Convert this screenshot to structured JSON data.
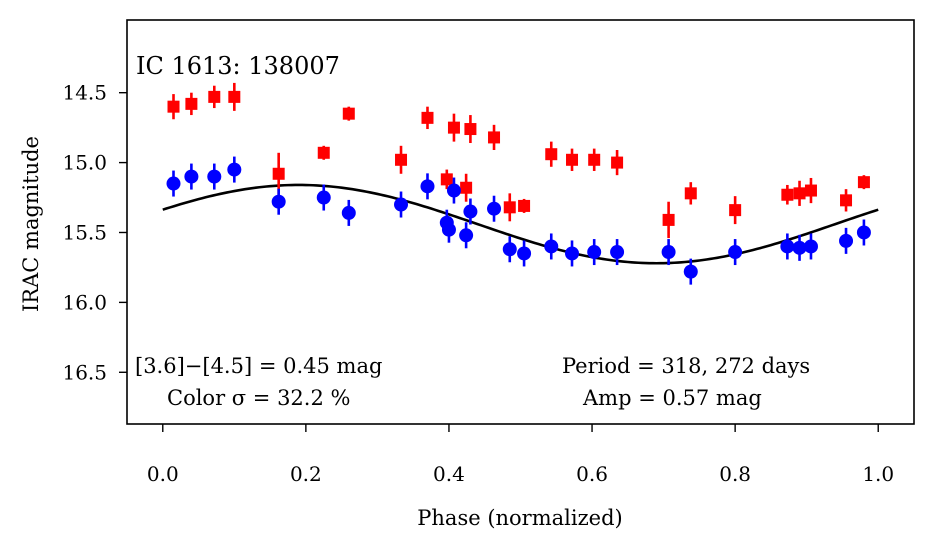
{
  "chart_data": {
    "type": "scatter",
    "title": "IC 1613:  138007",
    "xlabel": "Phase (normalized)",
    "ylabel": "IRAC magnitude",
    "xlim": [
      -0.05,
      1.05
    ],
    "ylim": [
      16.87,
      13.98
    ],
    "y_inverted": true,
    "grid": false,
    "xticks": [
      "0.0",
      "0.2",
      "0.4",
      "0.6",
      "0.8",
      "1.0"
    ],
    "xtick_values": [
      0.0,
      0.2,
      0.4,
      0.6,
      0.8,
      1.0
    ],
    "yticks": [
      "14.5",
      "15.0",
      "15.5",
      "16.0",
      "16.5"
    ],
    "ytick_values": [
      14.5,
      15.0,
      15.5,
      16.0,
      16.5
    ],
    "annotations": {
      "color_line1": "[3.6]−[4.5] = 0.45 mag",
      "color_line2": "Color σ = 32.2 %",
      "period": "Period = 318, 272 days",
      "amp": "Amp = 0.57 mag"
    },
    "series": [
      {
        "marker": "square",
        "color": "#ff0000",
        "x": [
          0.015,
          0.04,
          0.072,
          0.1,
          0.162,
          0.225,
          0.26,
          0.333,
          0.37,
          0.397,
          0.407,
          0.424,
          0.43,
          0.463,
          0.485,
          0.505,
          0.543,
          0.572,
          0.603,
          0.635,
          0.707,
          0.738,
          0.8,
          0.873,
          0.89,
          0.906,
          0.955,
          0.98
        ],
        "y": [
          14.6,
          14.58,
          14.53,
          14.53,
          15.08,
          14.93,
          14.65,
          14.98,
          14.68,
          15.12,
          14.75,
          15.18,
          14.76,
          14.82,
          15.32,
          15.31,
          14.94,
          14.98,
          14.98,
          15.0,
          15.41,
          15.22,
          15.34,
          15.23,
          15.22,
          15.2,
          15.27,
          15.14
        ],
        "err": [
          0.09,
          0.08,
          0.08,
          0.1,
          0.15,
          0.05,
          0.05,
          0.1,
          0.08,
          0.07,
          0.1,
          0.1,
          0.1,
          0.09,
          0.1,
          0.05,
          0.09,
          0.08,
          0.08,
          0.09,
          0.13,
          0.08,
          0.1,
          0.07,
          0.09,
          0.09,
          0.08,
          0.05
        ]
      },
      {
        "marker": "circle",
        "color": "#0000ff",
        "x": [
          0.015,
          0.04,
          0.072,
          0.1,
          0.162,
          0.225,
          0.26,
          0.333,
          0.37,
          0.397,
          0.4,
          0.407,
          0.424,
          0.43,
          0.463,
          0.485,
          0.505,
          0.543,
          0.572,
          0.603,
          0.635,
          0.707,
          0.738,
          0.8,
          0.873,
          0.89,
          0.906,
          0.955,
          0.98
        ],
        "y": [
          15.15,
          15.1,
          15.1,
          15.05,
          15.28,
          15.25,
          15.36,
          15.3,
          15.17,
          15.43,
          15.48,
          15.2,
          15.52,
          15.35,
          15.33,
          15.62,
          15.65,
          15.6,
          15.65,
          15.64,
          15.64,
          15.64,
          15.78,
          15.64,
          15.6,
          15.61,
          15.6,
          15.56,
          15.5
        ]
      }
    ],
    "fit": {
      "type": "sinusoid",
      "mean": 15.44,
      "amplitude": 0.28,
      "phase_of_max_brightness": 0.19,
      "color": "#000000"
    }
  }
}
